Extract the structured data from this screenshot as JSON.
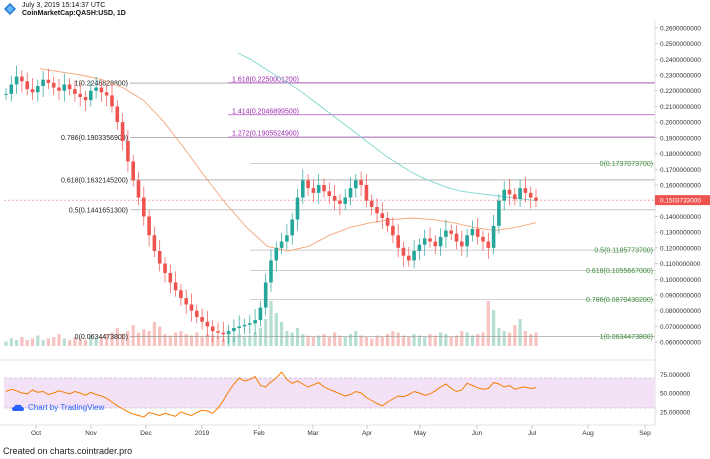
{
  "header": {
    "datetime": "July 3, 2019 15:14:37 UTC",
    "symbol": "CoinMarketCap:QASH:USD, 1D"
  },
  "footer": {
    "source": "Created on charts.cointrader.pro"
  },
  "branding": {
    "tradingview_label": "Chart by TradingView"
  },
  "colors": {
    "up": "#26a69a",
    "down": "#ef5350",
    "ma_slow": "#7fd6cf",
    "ma_fast": "#f5a47a",
    "fib_left": "#666666",
    "fib_ext": "#9c27b0",
    "fib_right": "#4caf50",
    "rsi_line": "#f57c00",
    "rsi_band": "#f3e2f5",
    "price_tag": "#ef5350"
  },
  "chart_data": {
    "type": "line",
    "subtype": "candlestick",
    "price_axis": {
      "ticks": [
        "0.2600000000",
        "0.2500000000",
        "0.2400000000",
        "0.2300000000",
        "0.2200000000",
        "0.2100000000",
        "0.2000000000",
        "0.1900000000",
        "0.1800000000",
        "0.1700000000",
        "0.1600000000",
        "0.1400000000",
        "0.1300000000",
        "0.1200000000",
        "0.1100000000",
        "0.1000000000",
        "0.0900000000",
        "0.0800000000",
        "0.0700000000",
        "0.0600000000"
      ],
      "tick_values": [
        0.26,
        0.25,
        0.24,
        0.23,
        0.22,
        0.21,
        0.2,
        0.19,
        0.18,
        0.17,
        0.16,
        0.14,
        0.13,
        0.12,
        0.11,
        0.1,
        0.09,
        0.08,
        0.07,
        0.06
      ],
      "ylim": [
        0.055,
        0.265
      ],
      "last_price_label": "0.1503733000",
      "last_price": 0.1503733
    },
    "time_axis": {
      "labels": [
        "Oct",
        "Nov",
        "Dec",
        "2019",
        "Feb",
        "Mar",
        "Apr",
        "May",
        "Jun",
        "Jul",
        "Aug",
        "Sep"
      ]
    },
    "fib_left": [
      {
        "label": "1(0.2248828800)",
        "value": 0.22488288
      },
      {
        "label": "0.786(0.1903356900)",
        "value": 0.19033569
      },
      {
        "label": "0.618(0.1632145200)",
        "value": 0.16321452
      },
      {
        "label": "0.5(0.1441651300)",
        "value": 0.14416513
      },
      {
        "label": "0(0.0634473800)",
        "value": 0.06344738
      }
    ],
    "fib_extension": [
      {
        "label": "1.618(0.2250001200)",
        "value": 0.22500012
      },
      {
        "label": "1.414(0.2046899500)",
        "value": 0.20468995
      },
      {
        "label": "1.272(0.1905524900)",
        "value": 0.19055249
      }
    ],
    "fib_right": [
      {
        "label": "0(0.1737073700)",
        "value": 0.17370737
      },
      {
        "label": "0.5(0.1185773700)",
        "value": 0.11857737
      },
      {
        "label": "0.618(0.1055667000)",
        "value": 0.1055667
      },
      {
        "label": "0.786(0.0870430200)",
        "value": 0.08704302
      },
      {
        "label": "1(0.0634473800)",
        "value": 0.06344738
      }
    ],
    "rsi": {
      "ticks": [
        "75.000000",
        "50.000000",
        "25.000000"
      ],
      "tick_values": [
        75,
        50,
        25
      ],
      "band": [
        30,
        70
      ],
      "ylim": [
        10,
        90
      ]
    },
    "price_series": [
      0.218,
      0.224,
      0.229,
      0.226,
      0.221,
      0.219,
      0.223,
      0.227,
      0.225,
      0.222,
      0.22,
      0.224,
      0.221,
      0.218,
      0.216,
      0.214,
      0.22,
      0.222,
      0.219,
      0.217,
      0.21,
      0.2,
      0.188,
      0.175,
      0.163,
      0.152,
      0.14,
      0.128,
      0.118,
      0.11,
      0.104,
      0.098,
      0.093,
      0.088,
      0.084,
      0.08,
      0.076,
      0.073,
      0.07,
      0.067,
      0.066,
      0.065,
      0.067,
      0.069,
      0.07,
      0.071,
      0.072,
      0.074,
      0.082,
      0.098,
      0.112,
      0.12,
      0.124,
      0.128,
      0.138,
      0.152,
      0.163,
      0.158,
      0.155,
      0.16,
      0.156,
      0.153,
      0.15,
      0.148,
      0.152,
      0.158,
      0.163,
      0.16,
      0.15,
      0.146,
      0.142,
      0.139,
      0.134,
      0.128,
      0.12,
      0.115,
      0.112,
      0.118,
      0.122,
      0.126,
      0.124,
      0.121,
      0.127,
      0.131,
      0.129,
      0.124,
      0.121,
      0.128,
      0.132,
      0.127,
      0.124,
      0.12,
      0.134,
      0.15,
      0.157,
      0.154,
      0.151,
      0.158,
      0.155,
      0.152,
      0.15
    ],
    "ma_slow_series": [
      0.244,
      0.24,
      0.235,
      0.23,
      0.225,
      0.22,
      0.214,
      0.208,
      0.202,
      0.196,
      0.19,
      0.184,
      0.178,
      0.173,
      0.168,
      0.164,
      0.161,
      0.158,
      0.156,
      0.155,
      0.154,
      0.153,
      0.152,
      0.151,
      0.15
    ],
    "ma_fast_series": [
      0.234,
      0.232,
      0.23,
      0.227,
      0.222,
      0.214,
      0.2,
      0.183,
      0.165,
      0.148,
      0.133,
      0.121,
      0.118,
      0.121,
      0.128,
      0.133,
      0.136,
      0.138,
      0.139,
      0.138,
      0.136,
      0.133,
      0.131,
      0.133,
      0.136
    ],
    "rsi_series": [
      52,
      55,
      53,
      50,
      49,
      54,
      51,
      52,
      48,
      50,
      53,
      51,
      49,
      52,
      50,
      47,
      51,
      48,
      46,
      43,
      38,
      33,
      29,
      25,
      22,
      20,
      18,
      24,
      22,
      20,
      23,
      21,
      19,
      25,
      22,
      20,
      24,
      27,
      26,
      23,
      30,
      40,
      52,
      62,
      70,
      66,
      68,
      72,
      60,
      58,
      65,
      70,
      78,
      68,
      63,
      66,
      62,
      58,
      61,
      64,
      58,
      55,
      52,
      49,
      46,
      48,
      52,
      50,
      44,
      40,
      36,
      33,
      38,
      42,
      46,
      45,
      48,
      52,
      50,
      47,
      49,
      53,
      58,
      62,
      56,
      52,
      54,
      63,
      60,
      57,
      55,
      56,
      64,
      62,
      58,
      60,
      55,
      57,
      58,
      56,
      57
    ],
    "volume_series": [
      3,
      5,
      4,
      6,
      4,
      5,
      7,
      4,
      5,
      6,
      8,
      5,
      4,
      6,
      5,
      4,
      7,
      5,
      6,
      8,
      9,
      12,
      8,
      10,
      14,
      9,
      11,
      10,
      16,
      13,
      8,
      7,
      9,
      10,
      8,
      7,
      9,
      6,
      8,
      7,
      6,
      5,
      7,
      6,
      8,
      6,
      7,
      9,
      12,
      18,
      30,
      22,
      16,
      10,
      9,
      12,
      8,
      7,
      6,
      7,
      8,
      6,
      9,
      7,
      6,
      8,
      10,
      7,
      6,
      5,
      7,
      6,
      8,
      10,
      9,
      7,
      6,
      8,
      7,
      6,
      8,
      7,
      9,
      8,
      6,
      7,
      10,
      9,
      7,
      8,
      9,
      30,
      24,
      12,
      10,
      9,
      14,
      18,
      10,
      8,
      9
    ]
  }
}
